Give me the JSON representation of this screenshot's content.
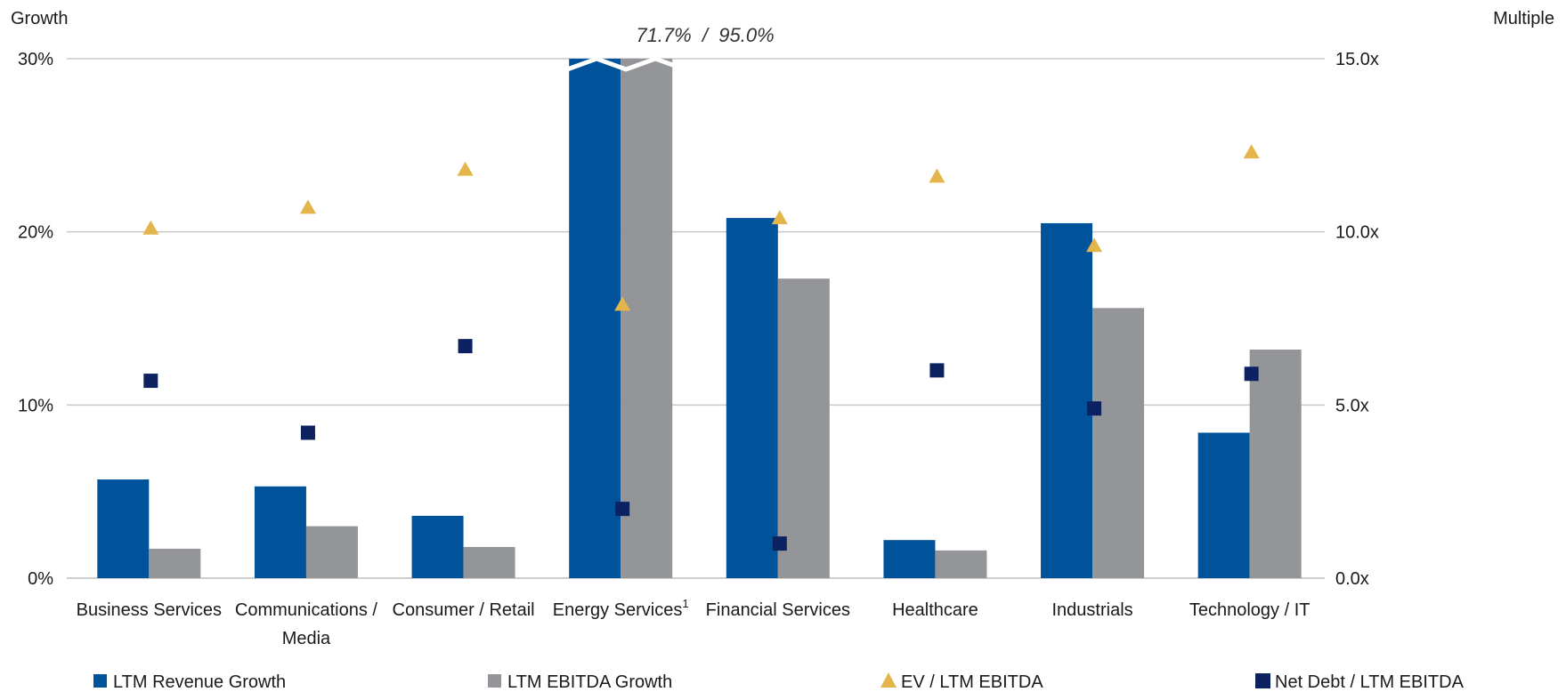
{
  "chart_data": {
    "type": "bar",
    "left_axis_title": "Growth",
    "right_axis_title": "Multiple",
    "left_ylim": [
      0,
      30
    ],
    "right_ylim": [
      0,
      15
    ],
    "left_ticks": [
      "0%",
      "10%",
      "20%",
      "30%"
    ],
    "right_ticks": [
      "0.0x",
      "5.0x",
      "10.0x",
      "15.0x"
    ],
    "categories": [
      {
        "label": "Business Services",
        "sup": ""
      },
      {
        "label": "Communications /|Media",
        "sup": ""
      },
      {
        "label": "Consumer / Retail",
        "sup": ""
      },
      {
        "label": "Energy Services",
        "sup": "1"
      },
      {
        "label": "Financial Services",
        "sup": ""
      },
      {
        "label": "Healthcare",
        "sup": ""
      },
      {
        "label": "Industrials",
        "sup": ""
      },
      {
        "label": "Technology / IT",
        "sup": ""
      }
    ],
    "series": [
      {
        "name": "LTM Revenue Growth",
        "kind": "bar",
        "axis": "left",
        "color": "#00539b",
        "values": [
          5.7,
          5.3,
          3.6,
          71.7,
          20.8,
          2.2,
          20.5,
          8.4
        ]
      },
      {
        "name": "LTM EBITDA Growth",
        "kind": "bar",
        "axis": "left",
        "color": "#939598",
        "values": [
          1.7,
          3.0,
          1.8,
          95.0,
          17.3,
          1.6,
          15.6,
          13.2
        ]
      },
      {
        "name": "EV / LTM EBITDA",
        "kind": "triangle",
        "axis": "right",
        "color": "#e3b54a",
        "values": [
          10.1,
          10.7,
          11.8,
          7.9,
          10.4,
          11.6,
          9.6,
          12.3
        ]
      },
      {
        "name": "Net Debt / LTM EBITDA",
        "kind": "square",
        "axis": "right",
        "color": "#0b2160",
        "values": [
          5.7,
          4.2,
          6.7,
          2.0,
          1.0,
          6.0,
          4.9,
          5.9
        ]
      }
    ],
    "break_annotation": "71.7%  /  95.0%",
    "grid": true,
    "legend_position": "bottom"
  }
}
